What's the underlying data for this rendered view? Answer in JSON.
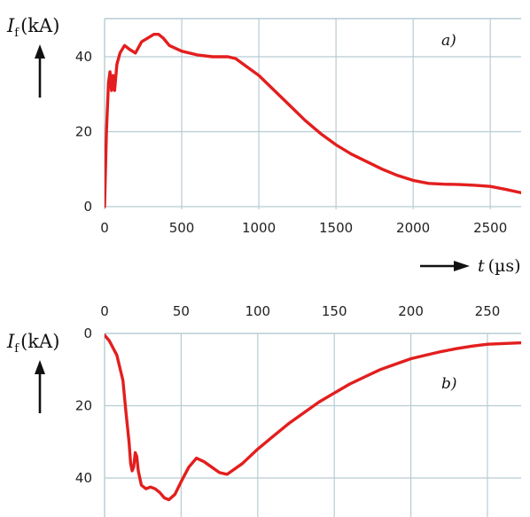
{
  "chart_data": [
    {
      "type": "line",
      "panel_label": "a)",
      "ylabel": {
        "symbol": "I",
        "subscript": "f",
        "unit": "(kA)"
      },
      "xlabel": {
        "symbol": "t",
        "unit": "(µs)"
      },
      "xlim": [
        0,
        2700
      ],
      "ylim": [
        0,
        50
      ],
      "x_ticks": [
        0,
        500,
        1000,
        1500,
        2000,
        2500
      ],
      "y_ticks": [
        0,
        20,
        40
      ],
      "x_grid": [
        0,
        500,
        1000,
        1500,
        2000,
        2500
      ],
      "y_grid": [
        0,
        20,
        40
      ],
      "grid": true,
      "color": "#e31e1e",
      "series": [
        {
          "x": [
            0,
            12,
            25,
            35,
            45,
            55,
            65,
            80,
            100,
            130,
            160,
            200,
            240,
            280,
            320,
            350,
            380,
            420,
            500,
            600,
            700,
            800,
            850,
            900,
            1000,
            1100,
            1200,
            1300,
            1400,
            1500,
            1600,
            1700,
            1800,
            1900,
            2000,
            2100,
            2200,
            2300,
            2400,
            2500,
            2600,
            2700
          ],
          "y": [
            0,
            20,
            33,
            36,
            31,
            35,
            31,
            38,
            41,
            43,
            42,
            41,
            44,
            45,
            46,
            46,
            45,
            43,
            41.5,
            40.5,
            40,
            40,
            39.5,
            38,
            35,
            31,
            27,
            23,
            19.5,
            16.5,
            14,
            12,
            10,
            8.3,
            7,
            6.2,
            6,
            5.9,
            5.7,
            5.4,
            4.6,
            3.7
          ]
        }
      ]
    },
    {
      "type": "line",
      "panel_label": "b)",
      "ylabel": {
        "symbol": "I",
        "subscript": "f",
        "unit": "(kA)"
      },
      "xlim": [
        0,
        272
      ],
      "ylim": [
        0,
        47
      ],
      "y_inverted": true,
      "x_ticks": [
        0,
        50,
        100,
        150,
        200,
        250
      ],
      "y_ticks": [
        0,
        20,
        40
      ],
      "x_grid": [
        0,
        50,
        100,
        150,
        200,
        250
      ],
      "y_grid": [
        0,
        20,
        40
      ],
      "grid": true,
      "color": "#e31e1e",
      "series": [
        {
          "x": [
            0,
            3,
            8,
            12,
            14,
            16,
            17,
            18,
            19,
            20,
            21,
            22,
            24,
            27,
            30,
            33,
            36,
            39,
            42,
            46,
            50,
            55,
            60,
            65,
            70,
            75,
            80,
            90,
            100,
            110,
            120,
            130,
            140,
            150,
            160,
            170,
            180,
            190,
            200,
            210,
            220,
            230,
            240,
            250,
            260,
            272
          ],
          "y": [
            0.5,
            2,
            6,
            13,
            22,
            30,
            36,
            38,
            37,
            33,
            34,
            38,
            42,
            43,
            42.5,
            43,
            44,
            45.5,
            46,
            44.5,
            41,
            37,
            34.5,
            35.5,
            37,
            38.5,
            39,
            36,
            32,
            28.5,
            25,
            22,
            19,
            16.5,
            14,
            12,
            10,
            8.5,
            7,
            6,
            5,
            4.2,
            3.5,
            3,
            2.8,
            2.6
          ]
        }
      ]
    }
  ]
}
